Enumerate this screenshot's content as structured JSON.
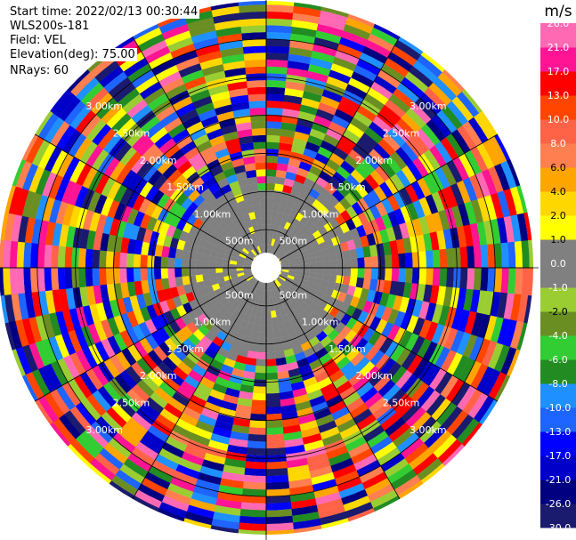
{
  "header": {
    "start_time": "Start time: 2022/02/13 00:30:44",
    "instrument": "WLS200s-181",
    "field": "Field: VEL",
    "elevation": "Elevation(deg): 75.00",
    "nrays": "NRays: 60"
  },
  "chart_data": {
    "type": "heatmap",
    "projection": "polar-ppi",
    "nrays": 60,
    "range_unit": "km",
    "range_max_km": 3.5,
    "range_rings_km": [
      0.5,
      1.0,
      1.5,
      2.0,
      2.5,
      3.0
    ],
    "range_ring_labels": [
      "500m",
      "1.00km",
      "1.50km",
      "2.00km",
      "2.50km",
      "3.00km"
    ],
    "grid": true,
    "gate_colors_legend": "colors per gate follow the colorbar; inner ~1.0-1.2 km mostly 0 m/s (gray), outer gates highly variable",
    "colorbar": {
      "unit": "m/s",
      "placement": "right",
      "bounds": [
        -30.0,
        -26.0,
        -21.0,
        -17.0,
        -13.0,
        -10.0,
        -8.0,
        -6.0,
        -4.0,
        -2.0,
        -1.0,
        0.0,
        1.0,
        2.0,
        4.0,
        6.0,
        8.0,
        10.0,
        13.0,
        17.0,
        21.0,
        26.0
      ],
      "tick_labels": [
        "-30.0",
        "-26.0",
        "-21.0",
        "-17.0",
        "-13.0",
        "-10.0",
        "-8.0",
        "-6.0",
        "-4.0",
        "-2.0",
        "-1.0",
        "0.0",
        "1.0",
        "2.0",
        "4.0",
        "6.0",
        "8.0",
        "10.0",
        "13.0",
        "17.0",
        "21.0",
        "26.0"
      ],
      "colors": [
        "#1a1a6e",
        "#000080",
        "#0000c8",
        "#0000ff",
        "#1e64ff",
        "#1e90ff",
        "#228b22",
        "#32cd32",
        "#6b8e23",
        "#9acd32",
        "#808080",
        "#808080",
        "#ffff00",
        "#ffd700",
        "#ffa500",
        "#ff7f50",
        "#ff6347",
        "#ff4500",
        "#ff0000",
        "#ff1493",
        "#ff69b4"
      ]
    }
  }
}
